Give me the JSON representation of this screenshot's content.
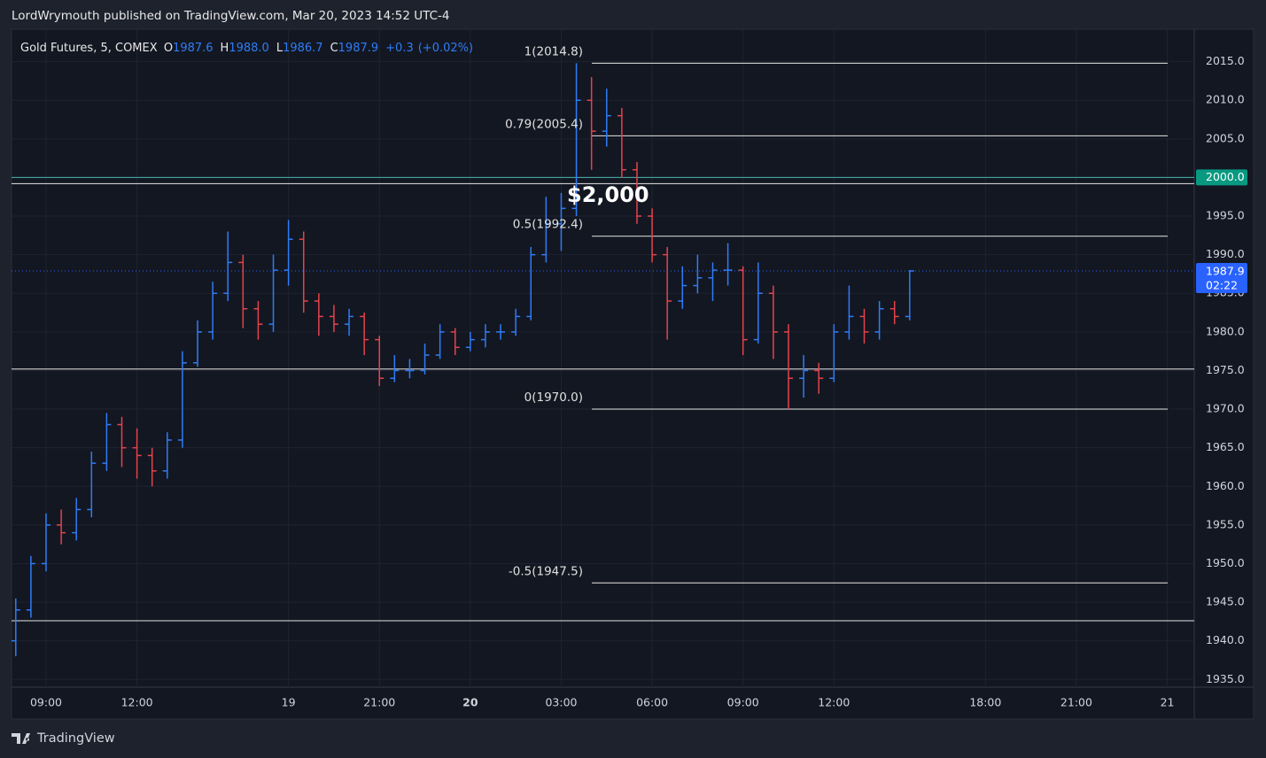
{
  "header": {
    "text": "LordWrymouth published on TradingView.com, Mar 20, 2023 14:52 UTC-4"
  },
  "footer": {
    "brand": "TradingView"
  },
  "chart_data": {
    "type": "ohlc",
    "symbol": "Gold Futures, 5, COMEX",
    "legend": [
      {
        "key": "O",
        "value": 1987.6
      },
      {
        "key": "H",
        "value": {
          "value": 1988.0,
          "label": "1988.0"
        }
      },
      {
        "key": "L",
        "value": 1986.7
      },
      {
        "key": "C",
        "value": 1987.9
      }
    ],
    "change": {
      "value": 0.3,
      "label": "+0.3"
    },
    "change_pct": {
      "value": 0.02,
      "label": "(+0.02%)"
    },
    "annotation": "$2,000",
    "up_color": "#2f7cf6",
    "down_color": "#e5434b",
    "xlim": [
      7.86,
      46.89
    ],
    "ylim": [
      1934.0,
      2019.2
    ],
    "xticks": [
      {
        "value": 9,
        "label": "09:00"
      },
      {
        "value": 12,
        "label": "12:00"
      },
      {
        "value": 17,
        "label": "19"
      },
      {
        "value": 20,
        "label": "21:00"
      },
      {
        "value": 23,
        "label": "20"
      },
      {
        "value": 26,
        "label": "03:00"
      },
      {
        "value": 29,
        "label": "06:00"
      },
      {
        "value": 32,
        "label": "09:00"
      },
      {
        "value": 35,
        "label": "12:00"
      },
      {
        "value": 40,
        "label": "18:00"
      },
      {
        "value": 43,
        "label": "21:00"
      },
      {
        "value": 46,
        "label": "21"
      }
    ],
    "yticks": [
      {
        "value": 1935,
        "label": "1935.0"
      },
      {
        "value": 1940,
        "label": "1940.0"
      },
      {
        "value": 1945,
        "label": "1945.0"
      },
      {
        "value": 1950,
        "label": "1950.0"
      },
      {
        "value": 1955,
        "label": "1955.0"
      },
      {
        "value": 1960,
        "label": "1960.0"
      },
      {
        "value": 1965,
        "label": "1965.0"
      },
      {
        "value": 1970,
        "label": "1970.0"
      },
      {
        "value": 1975,
        "label": "1975.0"
      },
      {
        "value": 1980,
        "label": "1980.0"
      },
      {
        "value": 1985,
        "label": "1985.0"
      },
      {
        "value": 1990,
        "label": "1990.0"
      },
      {
        "value": 1995,
        "label": "1995.0"
      },
      {
        "value": 2000,
        "label": "2000.0"
      },
      {
        "value": 2005,
        "label": "2005.0"
      },
      {
        "value": 2010,
        "label": "2010.0"
      },
      {
        "value": 2015,
        "label": "2015.0"
      }
    ],
    "grid": true,
    "hlines": [
      {
        "value": 2000.0,
        "color": "#4db6ac"
      },
      {
        "value": 1999.2,
        "color": "#e6e6e6"
      },
      {
        "value": 1975.2,
        "color": "#e6e6e6"
      },
      {
        "value": 1942.6,
        "color": "#e6e6e6"
      }
    ],
    "fib": [
      {
        "value": 2014.8,
        "label": "1(2014.8)"
      },
      {
        "value": 2005.4,
        "label": "0.79(2005.4)"
      },
      {
        "value": 1992.4,
        "label": "0.5(1992.4)"
      },
      {
        "value": 1970.0,
        "label": "0(1970.0)"
      },
      {
        "value": 1947.5,
        "label": "-0.5(1947.5)"
      }
    ],
    "price_tag": {
      "value": 2000.0,
      "label": "2000.0",
      "color": "#089981"
    },
    "last_price": {
      "value": 1987.9,
      "color": "#2962ff"
    },
    "countdown": "02:22",
    "x": [
      8,
      8.5,
      9,
      9.5,
      10,
      10.5,
      11,
      11.5,
      12,
      12.5,
      13,
      13.5,
      14,
      14.5,
      15,
      15.5,
      16,
      16.5,
      17,
      17.5,
      18,
      18.5,
      19,
      19.5,
      20,
      20.5,
      21,
      21.5,
      22,
      22.5,
      23,
      23.5,
      24,
      24.5,
      25,
      25.5,
      26,
      26.5,
      27,
      27.5,
      28,
      28.5,
      29,
      29.5,
      30,
      30.5,
      31,
      31.5,
      32,
      32.5,
      33,
      33.5,
      34,
      34.5,
      35,
      35.5,
      36,
      36.5,
      37,
      37.5
    ],
    "open": [
      1940,
      1944,
      1950,
      1955,
      1954,
      1957,
      1963,
      1968,
      1965,
      1964,
      1962,
      1966,
      1976,
      1980,
      1985,
      1989,
      1983,
      1981,
      1988,
      1992,
      1984,
      1982,
      1981,
      1982,
      1979,
      1974,
      1975,
      1975,
      1977,
      1980,
      1978,
      1979,
      1980,
      1980,
      1982,
      1990,
      1994,
      1996,
      2010,
      2006,
      2008,
      2001,
      1995,
      1990,
      1984,
      1986,
      1987,
      1988,
      1988,
      1979,
      1985,
      1980,
      1974,
      1975,
      1974,
      1980,
      1982,
      1980,
      1983,
      1982
    ],
    "high": [
      1945.5,
      1951,
      1956.5,
      1957,
      1958.5,
      1964.5,
      1969.5,
      1969,
      1967.5,
      1965,
      1967,
      1977.5,
      1981.5,
      1986.5,
      1993,
      1990,
      1984,
      1990,
      1994.5,
      1993,
      1985,
      1983.5,
      1983,
      1982.5,
      1979.5,
      1977,
      1976.5,
      1978.5,
      1981,
      1980.5,
      1980,
      1981,
      1981,
      1983,
      1991,
      1997.5,
      1998,
      2014.8,
      2013,
      2011.5,
      2009,
      2002,
      1996,
      1991,
      1988.5,
      1990,
      1989,
      1991.5,
      1988.5,
      1989,
      1986,
      1981,
      1977,
      1976,
      1981,
      1986,
      1983,
      1984,
      1984,
      1988.0
    ],
    "low": [
      1938,
      1943,
      1949,
      1952.5,
      1953,
      1956,
      1962,
      1962.5,
      1961,
      1960,
      1961,
      1965,
      1975.5,
      1979,
      1984,
      1980.5,
      1979,
      1980,
      1986,
      1982.5,
      1979.5,
      1980,
      1979.5,
      1977,
      1973,
      1973.5,
      1974,
      1974.5,
      1976.5,
      1977,
      1977.5,
      1978,
      1979,
      1979.5,
      1981.5,
      1989,
      1990.5,
      1995,
      2001,
      2004,
      2000,
      1994,
      1989,
      1979,
      1983,
      1985,
      1984,
      1986,
      1977,
      1978.5,
      1976.5,
      1970.0,
      1971.5,
      1972,
      1973.5,
      1979,
      1978.5,
      1979,
      1981,
      1981.5
    ],
    "close": [
      1944,
      1950,
      1955,
      1954,
      1957,
      1963,
      1968,
      1965,
      1964,
      1962,
      1966,
      1976,
      1980,
      1985,
      1989,
      1983,
      1981,
      1988,
      1992,
      1984,
      1982,
      1981,
      1982,
      1979,
      1974,
      1975,
      1975,
      1977,
      1980,
      1978,
      1979,
      1980,
      1980,
      1982,
      1990,
      1994,
      1996,
      2010,
      2006,
      2008,
      2001,
      1995,
      1990,
      1984,
      1986,
      1987,
      1988,
      1988,
      1979,
      1985,
      1980,
      1974,
      1975,
      1974,
      1980,
      1982,
      1980,
      1983,
      1982,
      1987.9
    ]
  }
}
